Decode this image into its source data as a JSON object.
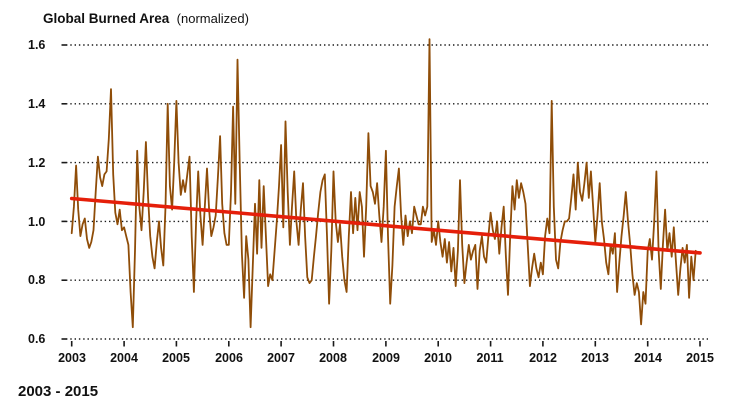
{
  "page": {
    "footer": "2003 - 2015"
  },
  "chart_data": {
    "type": "line",
    "title": "Global Burned Area",
    "title_suffix": "(normalized)",
    "footer": "2003 - 2015",
    "ylabel": "",
    "xlabel": "",
    "ylim": [
      0.6,
      1.6
    ],
    "grid": "horizontal-dotted",
    "legend": "none",
    "y_tick_labels": [
      "1.6",
      "1.4",
      "1.2",
      "1.0",
      "0.8",
      "0.6"
    ],
    "y_tick_values": [
      1.6,
      1.4,
      1.2,
      1.0,
      0.8,
      0.6
    ],
    "x_tick_labels": [
      "2003",
      "2004",
      "2005",
      "2006",
      "2007",
      "2008",
      "2009",
      "2010",
      "2011",
      "2012",
      "2013",
      "2014",
      "2015"
    ],
    "x_start_year": 2003,
    "x_end_year": 2015,
    "points_per_year": 24,
    "sampling": "semi-monthly estimates read from plot",
    "colors": {
      "series": "#8F4D08",
      "trend": "#E51F0A",
      "grid": "#1a1a1a",
      "text": "#111111"
    },
    "series_name": "Global burned area (normalized)",
    "values": [
      0.96,
      1.05,
      1.19,
      1.04,
      0.95,
      0.99,
      1.01,
      0.94,
      0.91,
      0.93,
      0.97,
      1.1,
      1.22,
      1.15,
      1.12,
      1.16,
      1.17,
      1.28,
      1.45,
      1.16,
      1.03,
      0.99,
      1.04,
      0.97,
      0.98,
      0.95,
      0.92,
      0.76,
      0.64,
      0.9,
      1.24,
      1.05,
      0.97,
      1.1,
      1.27,
      1.08,
      0.95,
      0.88,
      0.84,
      0.93,
      1.0,
      0.91,
      0.85,
      1.05,
      1.4,
      1.12,
      1.04,
      1.2,
      1.41,
      1.2,
      1.09,
      1.14,
      1.1,
      1.16,
      1.22,
      0.95,
      0.76,
      1.0,
      1.17,
      1.02,
      0.92,
      1.05,
      1.18,
      1.04,
      0.95,
      0.98,
      1.02,
      1.15,
      1.29,
      1.06,
      0.96,
      0.92,
      0.92,
      1.1,
      1.39,
      1.06,
      1.55,
      1.2,
      0.89,
      0.74,
      0.95,
      0.87,
      0.64,
      0.85,
      1.06,
      0.89,
      1.14,
      0.91,
      1.12,
      0.95,
      0.78,
      0.82,
      0.8,
      0.9,
      1.0,
      1.12,
      1.26,
      0.98,
      1.34,
      1.1,
      0.92,
      1.05,
      1.17,
      1.0,
      0.92,
      1.04,
      1.13,
      0.95,
      0.81,
      0.79,
      0.8,
      0.88,
      0.95,
      1.03,
      1.1,
      1.14,
      1.16,
      0.95,
      0.72,
      0.9,
      1.17,
      1.0,
      0.93,
      0.99,
      0.88,
      0.8,
      0.76,
      0.95,
      1.1,
      0.96,
      1.08,
      0.97,
      1.1,
      1.05,
      0.88,
      1.05,
      1.3,
      1.12,
      1.1,
      1.06,
      1.13,
      1.02,
      0.93,
      1.05,
      1.24,
      0.95,
      0.72,
      0.85,
      1.05,
      1.12,
      1.18,
      1.02,
      0.92,
      1.02,
      0.95,
      1.0,
      0.96,
      1.05,
      1.02,
      0.99,
      0.99,
      1.05,
      1.02,
      1.05,
      1.62,
      0.93,
      0.97,
      0.92,
      1.0,
      0.93,
      0.88,
      0.94,
      0.86,
      0.93,
      0.83,
      0.91,
      0.78,
      0.9,
      1.14,
      0.92,
      0.79,
      0.86,
      0.92,
      0.87,
      0.9,
      0.92,
      0.77,
      0.9,
      0.95,
      0.88,
      0.86,
      0.95,
      1.03,
      0.97,
      0.94,
      1.0,
      0.89,
      0.98,
      1.05,
      0.88,
      0.75,
      0.95,
      1.12,
      1.04,
      1.14,
      1.08,
      1.13,
      1.1,
      1.06,
      0.92,
      0.78,
      0.84,
      0.89,
      0.84,
      0.81,
      0.86,
      0.82,
      0.95,
      1.01,
      0.96,
      1.41,
      1.05,
      0.87,
      0.84,
      0.93,
      0.97,
      1.0,
      1.0,
      1.01,
      1.08,
      1.16,
      1.04,
      1.2,
      1.1,
      1.07,
      1.13,
      1.2,
      1.08,
      1.17,
      1.05,
      0.93,
      1.02,
      1.13,
      1.0,
      0.94,
      0.86,
      0.82,
      0.92,
      0.89,
      0.96,
      0.76,
      0.86,
      0.95,
      1.02,
      1.1,
      1.0,
      0.92,
      0.82,
      0.75,
      0.79,
      0.76,
      0.65,
      0.76,
      0.72,
      0.9,
      0.94,
      0.87,
      1.0,
      1.17,
      0.9,
      0.77,
      0.92,
      1.04,
      0.9,
      0.96,
      0.88,
      0.98,
      0.86,
      0.75,
      0.84,
      0.91,
      0.86,
      0.92,
      0.74,
      0.88,
      0.8,
      0.9
    ],
    "trend": {
      "name": "linear trend",
      "start_value": 1.078,
      "end_value": 0.893
    }
  }
}
